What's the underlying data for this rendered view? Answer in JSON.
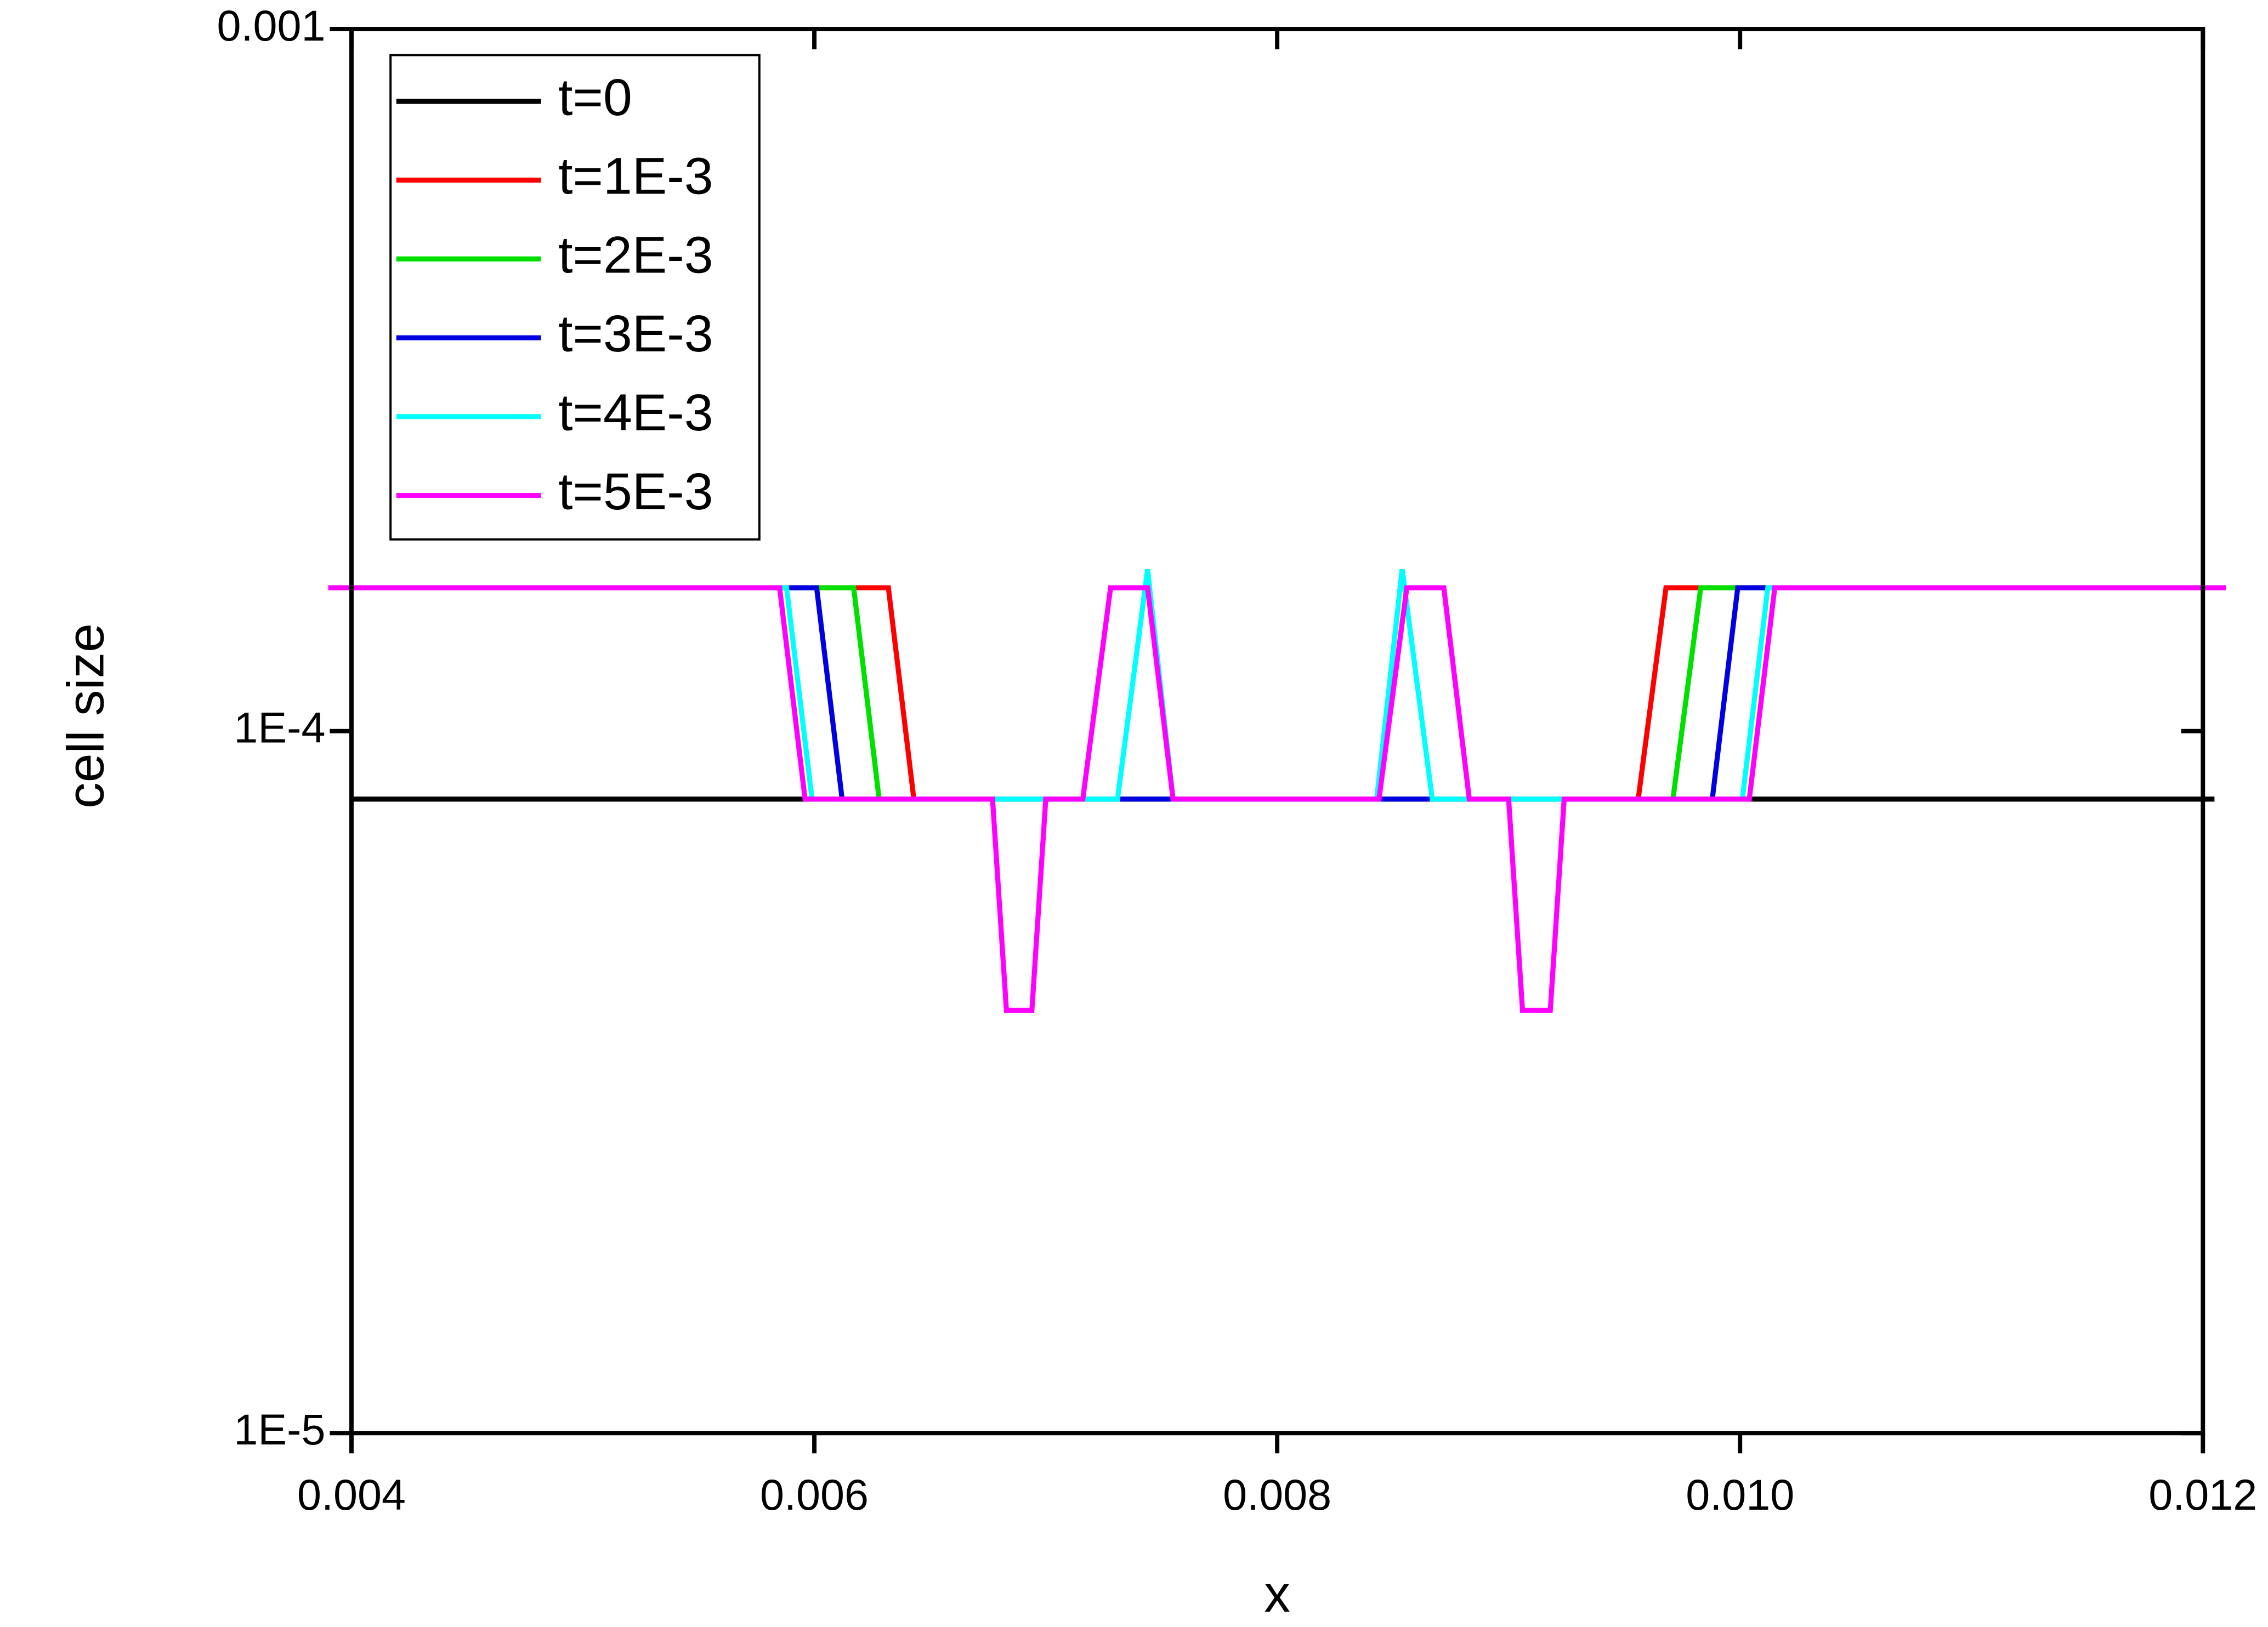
{
  "chart_data": {
    "type": "line",
    "xlabel": "x",
    "ylabel": "cell size",
    "xlim": [
      0.004,
      0.012
    ],
    "xticks": [
      0.004,
      0.006,
      0.008,
      {
        "value": 0.01,
        "label": "0.010"
      },
      0.012
    ],
    "ylim": [
      1e-05,
      0.001
    ],
    "yticks": [
      {
        "value": 1e-05,
        "label": "1E-5"
      },
      {
        "value": 0.0001,
        "label": "1E-4"
      },
      0.001
    ],
    "yscale": "log",
    "legend": "upper left",
    "series": [
      {
        "name": "t=0",
        "color": "#000000",
        "x": [
          0.004,
          0.01205
        ],
        "values": [
          8e-05,
          8e-05
        ]
      },
      {
        "name": "t=1E-3",
        "color": "#ff0000",
        "x": [
          0.0039,
          0.00632,
          0.00643,
          0.00956,
          0.00968,
          0.0121
        ],
        "values": [
          0.00016,
          0.00016,
          8e-05,
          8e-05,
          0.00016,
          0.00016
        ]
      },
      {
        "name": "t=2E-3",
        "color": "#00e000",
        "x": [
          0.0039,
          0.00617,
          0.00628,
          0.00971,
          0.00983,
          0.0121
        ],
        "values": [
          0.00016,
          0.00016,
          8e-05,
          8e-05,
          0.00016,
          0.00016
        ]
      },
      {
        "name": "t=3E-3",
        "color": "#0000e0",
        "x": [
          0.0039,
          0.00601,
          0.00612,
          0.00988,
          0.00999,
          0.0121
        ],
        "values": [
          0.00016,
          0.00016,
          8e-05,
          8e-05,
          0.00016,
          0.00016
        ]
      },
      {
        "name": "t=4E-3",
        "color": "#00ffff",
        "x": [
          0.0039,
          0.00588,
          0.00599,
          0.00731,
          0.00744,
          0.00755,
          0.00843,
          0.00854,
          0.00867,
          0.01001,
          0.01012,
          0.0121
        ],
        "values": [
          0.00016,
          0.00016,
          8e-05,
          8e-05,
          0.00017,
          8e-05,
          8e-05,
          0.00017,
          8e-05,
          8e-05,
          0.00016,
          0.00016
        ]
      },
      {
        "name": "t=5E-3",
        "color": "#ff00ff",
        "x": [
          0.0039,
          0.00585,
          0.00596,
          0.00677,
          0.00683,
          0.00694,
          0.007,
          0.00716,
          0.00728,
          0.00744,
          0.00755,
          0.00844,
          0.00856,
          0.00872,
          0.00883,
          0.009,
          0.00906,
          0.00918,
          0.00924,
          0.01004,
          0.01015,
          0.0121
        ],
        "values": [
          0.00016,
          0.00016,
          8e-05,
          8e-05,
          4e-05,
          4e-05,
          8e-05,
          8e-05,
          0.00016,
          0.00016,
          8e-05,
          8e-05,
          0.00016,
          0.00016,
          8e-05,
          8e-05,
          4e-05,
          4e-05,
          8e-05,
          8e-05,
          0.00016,
          0.00016
        ]
      }
    ]
  }
}
